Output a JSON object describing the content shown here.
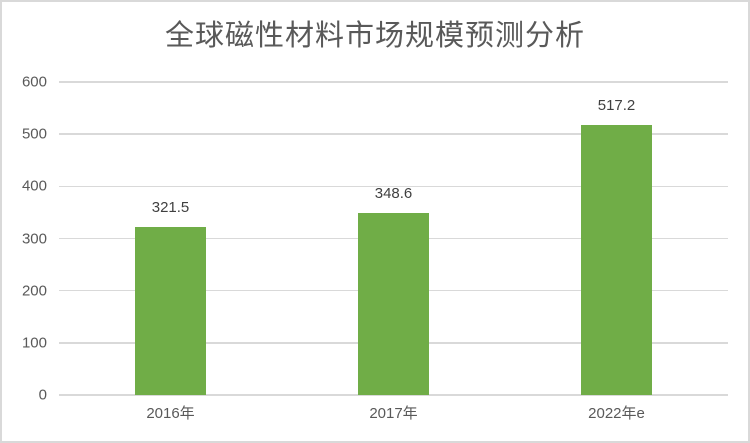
{
  "chart_data": {
    "type": "bar",
    "title": "全球磁性材料市场规模预测分析",
    "categories": [
      "2016年",
      "2017年",
      "2022年e"
    ],
    "values": [
      321.5,
      348.6,
      517.2
    ],
    "data_labels": [
      "321.5",
      "348.6",
      "517.2"
    ],
    "xlabel": "",
    "ylabel": "",
    "ylim": [
      0,
      600
    ],
    "yticks": [
      0,
      100,
      200,
      300,
      400,
      500,
      600
    ],
    "grid": true,
    "legend": "none",
    "colors": {
      "bar": "#70AD47",
      "title_text": "#595959",
      "axis_text": "#595959",
      "data_label_text": "#404040",
      "gridline": "#D9D9D9",
      "frame_border": "#D9D9D9",
      "background": "#FFFFFF"
    }
  }
}
